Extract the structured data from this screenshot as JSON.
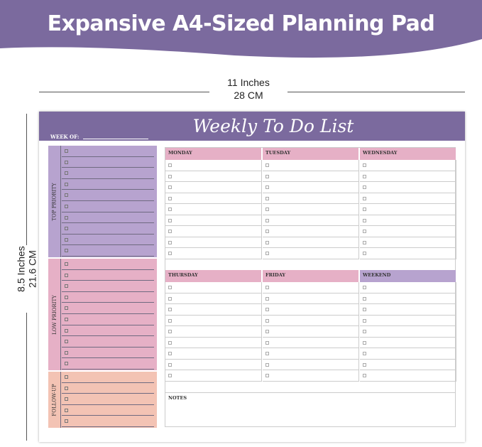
{
  "banner": {
    "title": "Expansive A4-Sized Planning Pad",
    "color": "#7b6a9e"
  },
  "dimensions": {
    "width_in": "11 Inches",
    "width_cm": "28 CM",
    "height_in": "8.5 Inches",
    "height_cm": "21.6 CM"
  },
  "sheet": {
    "title": "Weekly To Do List",
    "week_of": "WEEK OF:",
    "sections": [
      {
        "label": "TOP PRIORITY",
        "color": "#b7a3cf",
        "rows": 10
      },
      {
        "label": "LOW PRIORITY",
        "color": "#e6b0c6",
        "rows": 10
      },
      {
        "label": "FOLLOW-UP",
        "color": "#f3c3b4",
        "rows": 5
      }
    ],
    "days_top": [
      {
        "label": "MONDAY",
        "color": "#e6b0c6"
      },
      {
        "label": "TUESDAY",
        "color": "#e6b0c6"
      },
      {
        "label": "WEDNESDAY",
        "color": "#e6b0c6"
      }
    ],
    "days_bottom": [
      {
        "label": "THURSDAY",
        "color": "#e6b0c6"
      },
      {
        "label": "FRIDAY",
        "color": "#e6b0c6"
      },
      {
        "label": "WEEKEND",
        "color": "#b7a3cf"
      }
    ],
    "rows_per_day": 9,
    "notes": "NOTES"
  }
}
